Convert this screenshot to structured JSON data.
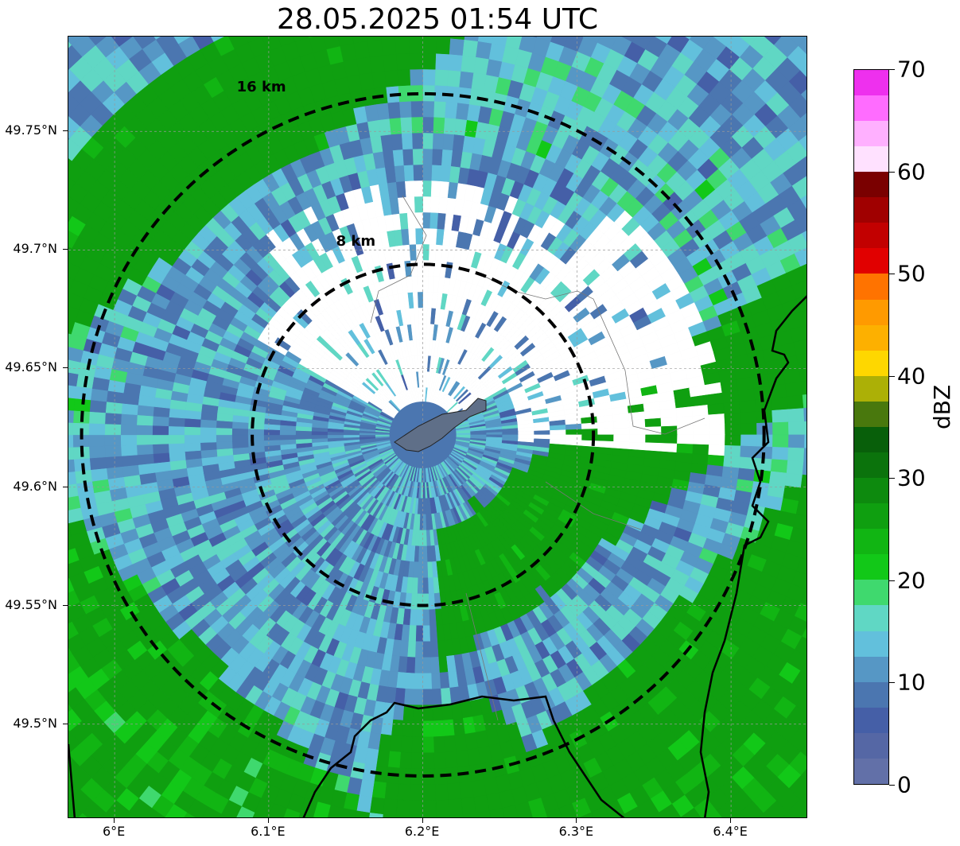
{
  "title": "28.05.2025 01:54 UTC",
  "map": {
    "lon_range": [
      5.97,
      6.45
    ],
    "lat_range": [
      49.46,
      49.79
    ],
    "radar_center": {
      "lon": 6.2,
      "lat": 49.622
    },
    "range_rings": [
      {
        "label": "8 km",
        "km": 8,
        "style": "dashed"
      },
      {
        "label": "16 km",
        "km": 16,
        "style": "dashed"
      }
    ],
    "gridlines": true,
    "x_ticks": [
      {
        "value": 6.0,
        "label": "6°E"
      },
      {
        "value": 6.1,
        "label": "6.1°E"
      },
      {
        "value": 6.2,
        "label": "6.2°E"
      },
      {
        "value": 6.3,
        "label": "6.3°E"
      },
      {
        "value": 6.4,
        "label": "6.4°E"
      }
    ],
    "y_ticks": [
      {
        "value": 49.75,
        "label": "49.75°N"
      },
      {
        "value": 49.7,
        "label": "49.7°N"
      },
      {
        "value": 49.65,
        "label": "49.65°N"
      },
      {
        "value": 49.6,
        "label": "49.6°N"
      },
      {
        "value": 49.55,
        "label": "49.55°N"
      },
      {
        "value": 49.5,
        "label": "49.5°N"
      }
    ],
    "features": [
      "country-border",
      "municipal-boundaries",
      "city-outline",
      "reflectivity-field"
    ]
  },
  "colorbar": {
    "label": "dBZ",
    "min": 0,
    "max": 70,
    "ticks": [
      "0",
      "10",
      "20",
      "30",
      "40",
      "50",
      "60",
      "70"
    ],
    "colors": [
      "#6270a8",
      "#5567a5",
      "#455fa7",
      "#4b76b0",
      "#5697c5",
      "#62c0dc",
      "#60d7c4",
      "#3fd96e",
      "#12c818",
      "#11b513",
      "#0f9f10",
      "#0d8a0e",
      "#0b730c",
      "#085f0a",
      "#49780d",
      "#acb006",
      "#fed700",
      "#fdb000",
      "#ff9a00",
      "#ff7300",
      "#e10000",
      "#c20000",
      "#a00000",
      "#7a0000",
      "#ffe1ff",
      "#ffb0ff",
      "#ff6cff",
      "#ee30ee"
    ]
  }
}
